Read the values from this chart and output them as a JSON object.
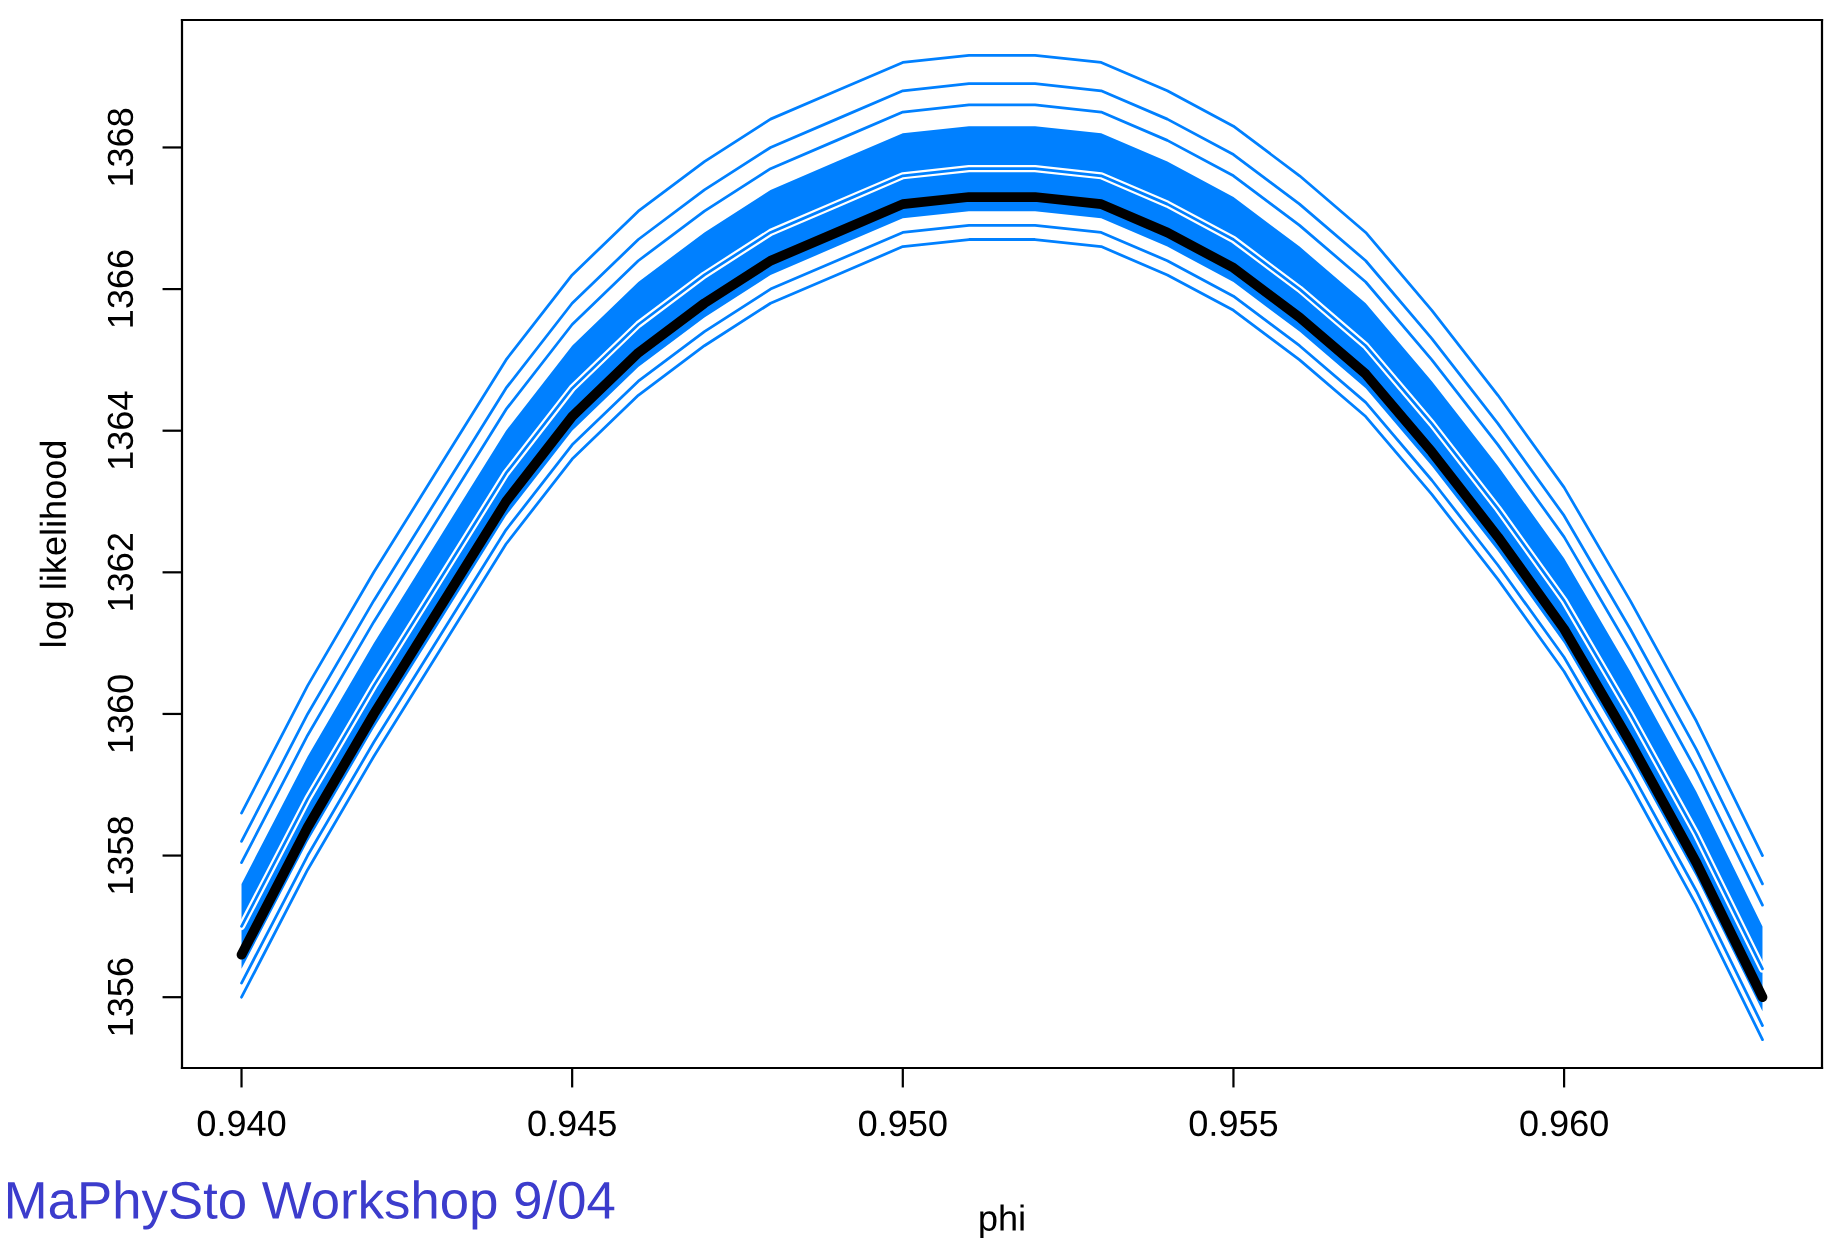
{
  "chart_data": {
    "type": "line",
    "xlabel": "phi",
    "ylabel": "log likelihood",
    "x": [
      0.94,
      0.941,
      0.942,
      0.943,
      0.944,
      0.945,
      0.946,
      0.947,
      0.948,
      0.949,
      0.95,
      0.951,
      0.952,
      0.953,
      0.954,
      0.955,
      0.956,
      0.957,
      0.958,
      0.959,
      0.96,
      0.961,
      0.962,
      0.963
    ],
    "series": [
      {
        "color": "#0080ff",
        "values": [
          1358.6,
          1360.4,
          1362.0,
          1363.5,
          1365.0,
          1366.2,
          1367.1,
          1367.8,
          1368.4,
          1368.8,
          1369.2,
          1369.3,
          1369.3,
          1369.2,
          1368.8,
          1368.3,
          1367.6,
          1366.8,
          1365.7,
          1364.5,
          1363.2,
          1361.6,
          1359.9,
          1358.0
        ]
      },
      {
        "color": "#0080ff",
        "values": [
          1358.2,
          1360.0,
          1361.6,
          1363.1,
          1364.6,
          1365.8,
          1366.7,
          1367.4,
          1368.0,
          1368.4,
          1368.8,
          1368.9,
          1368.9,
          1368.8,
          1368.4,
          1367.9,
          1367.2,
          1366.4,
          1365.3,
          1364.1,
          1362.8,
          1361.2,
          1359.5,
          1357.6
        ]
      },
      {
        "color": "#0080ff",
        "values": [
          1357.9,
          1359.7,
          1361.3,
          1362.8,
          1364.3,
          1365.5,
          1366.4,
          1367.1,
          1367.7,
          1368.1,
          1368.5,
          1368.6,
          1368.6,
          1368.5,
          1368.1,
          1367.6,
          1366.9,
          1366.1,
          1365.0,
          1363.8,
          1362.5,
          1360.9,
          1359.2,
          1357.3
        ]
      },
      {
        "color": "#0080ff",
        "values": [
          1357.0,
          1358.8,
          1360.4,
          1361.9,
          1363.4,
          1364.6,
          1365.5,
          1366.2,
          1366.8,
          1367.2,
          1367.6,
          1367.7,
          1367.7,
          1367.6,
          1367.2,
          1366.7,
          1366.0,
          1365.2,
          1364.1,
          1362.9,
          1361.6,
          1360.0,
          1358.3,
          1356.4
        ],
        "lower": [
          1356.4,
          1358.2,
          1359.8,
          1361.3,
          1362.8,
          1364.0,
          1364.9,
          1365.6,
          1366.2,
          1366.6,
          1367.0,
          1367.1,
          1367.1,
          1367.0,
          1366.6,
          1366.1,
          1365.4,
          1364.6,
          1363.5,
          1362.3,
          1361.0,
          1359.4,
          1357.7,
          1355.8
        ],
        "upper": [
          1357.6,
          1359.4,
          1361.0,
          1362.5,
          1364.0,
          1365.2,
          1366.1,
          1366.8,
          1367.4,
          1367.8,
          1368.2,
          1368.3,
          1368.3,
          1368.2,
          1367.8,
          1367.3,
          1366.6,
          1365.8,
          1364.7,
          1363.5,
          1362.2,
          1360.6,
          1358.9,
          1357.0
        ]
      },
      {
        "color": "#0080ff",
        "values": [
          1356.2,
          1358.0,
          1359.6,
          1361.1,
          1362.6,
          1363.8,
          1364.7,
          1365.4,
          1366.0,
          1366.4,
          1366.8,
          1366.9,
          1366.9,
          1366.8,
          1366.4,
          1365.9,
          1365.2,
          1364.4,
          1363.3,
          1362.1,
          1360.8,
          1359.2,
          1357.5,
          1355.6
        ]
      },
      {
        "color": "#0080ff",
        "values": [
          1356.0,
          1357.8,
          1359.4,
          1360.9,
          1362.4,
          1363.6,
          1364.5,
          1365.2,
          1365.8,
          1366.2,
          1366.6,
          1366.7,
          1366.7,
          1366.6,
          1366.2,
          1365.7,
          1365.0,
          1364.2,
          1363.1,
          1361.9,
          1360.6,
          1359.0,
          1357.3,
          1355.4
        ]
      },
      {
        "color": "#000000",
        "values": [
          1356.6,
          1358.4,
          1360.0,
          1361.5,
          1363.0,
          1364.2,
          1365.1,
          1365.8,
          1366.4,
          1366.8,
          1367.2,
          1367.3,
          1367.3,
          1367.2,
          1366.8,
          1366.3,
          1365.6,
          1364.8,
          1363.7,
          1362.5,
          1361.2,
          1359.6,
          1357.9,
          1356.0
        ]
      }
    ],
    "xlim": [
      0.9391,
      0.9639
    ],
    "xticks": [
      {
        "value": 0.94,
        "label": "0.940"
      },
      {
        "value": 0.945,
        "label": "0.945"
      },
      {
        "value": 0.95,
        "label": "0.950"
      },
      {
        "value": 0.955,
        "label": "0.955"
      },
      {
        "value": 0.96,
        "label": "0.960"
      }
    ],
    "ylim": [
      1355.0,
      1369.8
    ],
    "yticks": [
      1356,
      1358,
      1360,
      1362,
      1364,
      1366,
      1368
    ],
    "grid": false,
    "legend": false,
    "marker": "none",
    "line_style": "solid",
    "annotations": [
      "MaPhySto Workshop 9/04"
    ]
  }
}
